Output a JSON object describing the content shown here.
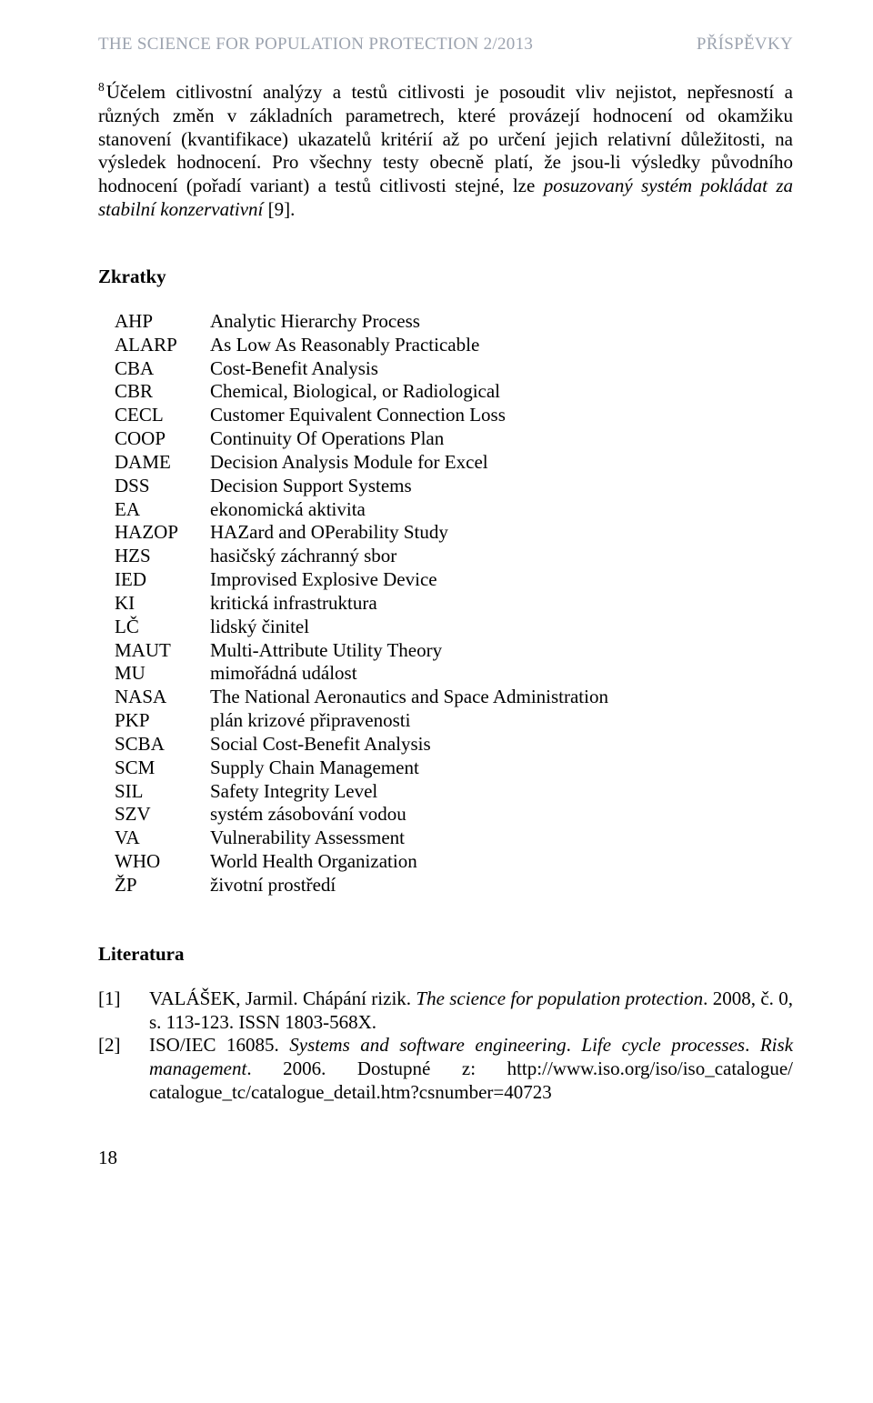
{
  "header": {
    "left": "THE SCIENCE FOR POPULATION PROTECTION 2/2013",
    "right": "PŘÍSPĚVKY"
  },
  "footnote": {
    "marker": "8",
    "plain_before": "Účelem citlivostní analýzy a testů citlivosti je posoudit vliv nejistot, nepřesností a různých změn v základních parametrech, které provázejí hodnocení od okamžiku stanovení (kvantifikace) ukazatelů kritérií až po určení jejich relativní důležitosti, na výsledek hodnocení. Pro všechny testy obecně platí, že jsou-li výsledky původního hodnocení (pořadí variant) a testů citlivosti stejné, lze ",
    "italic": "posuzovaný systém pokládat za stabilní konzervativní",
    "plain_after": " [9]."
  },
  "abbrev": {
    "heading": "Zkratky",
    "items": [
      {
        "k": "AHP",
        "v": "Analytic Hierarchy Process"
      },
      {
        "k": "ALARP",
        "v": "As Low As Reasonably Practicable"
      },
      {
        "k": "CBA",
        "v": "Cost-Benefit Analysis"
      },
      {
        "k": "CBR",
        "v": "Chemical, Biological, or Radiological"
      },
      {
        "k": "CECL",
        "v": "Customer Equivalent Connection Loss"
      },
      {
        "k": "COOP",
        "v": "Continuity Of Operations Plan"
      },
      {
        "k": "DAME",
        "v": "Decision Analysis Module for Excel"
      },
      {
        "k": "DSS",
        "v": "Decision Support Systems"
      },
      {
        "k": "EA",
        "v": "ekonomická aktivita"
      },
      {
        "k": "HAZOP",
        "v": "HAZard and OPerability Study"
      },
      {
        "k": "HZS",
        "v": "hasičský záchranný sbor"
      },
      {
        "k": "IED",
        "v": "Improvised Explosive Device"
      },
      {
        "k": "KI",
        "v": "kritická infrastruktura"
      },
      {
        "k": "LČ",
        "v": "lidský činitel"
      },
      {
        "k": "MAUT",
        "v": "Multi-Attribute Utility Theory"
      },
      {
        "k": "MU",
        "v": "mimořádná událost"
      },
      {
        "k": "NASA",
        "v": "The National Aeronautics and Space Administration"
      },
      {
        "k": "PKP",
        "v": "plán krizové připravenosti"
      },
      {
        "k": "SCBA",
        "v": "Social Cost-Benefit Analysis"
      },
      {
        "k": "SCM",
        "v": "Supply Chain Management"
      },
      {
        "k": "SIL",
        "v": "Safety Integrity Level"
      },
      {
        "k": "SZV",
        "v": "systém zásobování vodou"
      },
      {
        "k": "VA",
        "v": "Vulnerability Assessment"
      },
      {
        "k": "WHO",
        "v": "World Health Organization"
      },
      {
        "k": "ŽP",
        "v": "životní prostředí"
      }
    ]
  },
  "literature": {
    "heading": "Literatura",
    "refs": [
      {
        "num": "[1]",
        "runs": [
          {
            "t": "VALÁŠEK, Jarmil. Chápání rizik. ",
            "i": false
          },
          {
            "t": "The science for population protection",
            "i": true
          },
          {
            "t": ". 2008, č. 0, s. 113-123. ISSN 1803-568X.",
            "i": false
          }
        ]
      },
      {
        "num": "[2]",
        "runs": [
          {
            "t": "ISO/IEC 16085. ",
            "i": false
          },
          {
            "t": "Systems and software engineering",
            "i": true
          },
          {
            "t": ". ",
            "i": false
          },
          {
            "t": "Life cycle processes",
            "i": true
          },
          {
            "t": ". ",
            "i": false
          },
          {
            "t": "Risk management",
            "i": true
          },
          {
            "t": ". 2006. Dostupné z: http://www.iso.org/iso/iso_catalogue/ catalogue_tc/catalogue_detail.htm?csnumber=40723",
            "i": false
          }
        ]
      }
    ]
  },
  "page_number": "18"
}
